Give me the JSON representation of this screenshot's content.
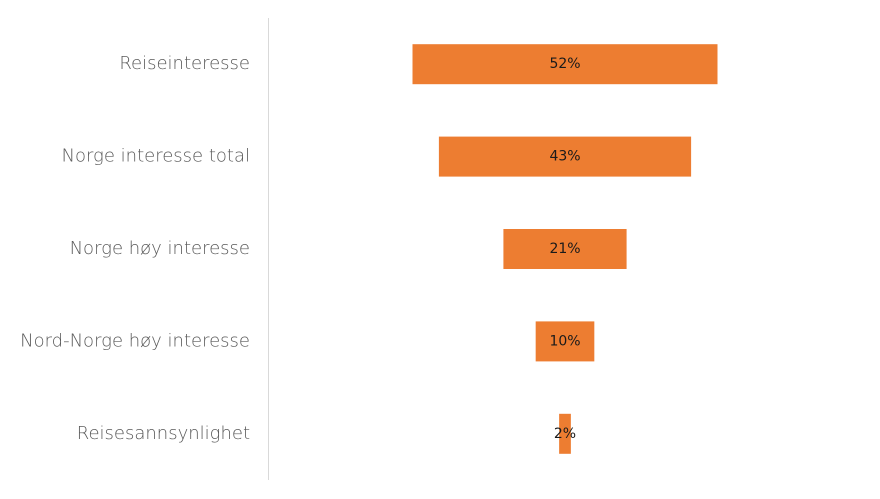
{
  "chart_data": {
    "type": "funnel",
    "categories": [
      "Reiseinteresse",
      "Norge interesse total",
      "Norge høy interesse",
      "Nord-Norge høy interesse",
      "Reisesannsynlighet"
    ],
    "values": [
      52,
      43,
      21,
      10,
      2
    ],
    "value_labels": [
      "52%",
      "43%",
      "21%",
      "10%",
      "2%"
    ],
    "color": "#ed7d31"
  }
}
